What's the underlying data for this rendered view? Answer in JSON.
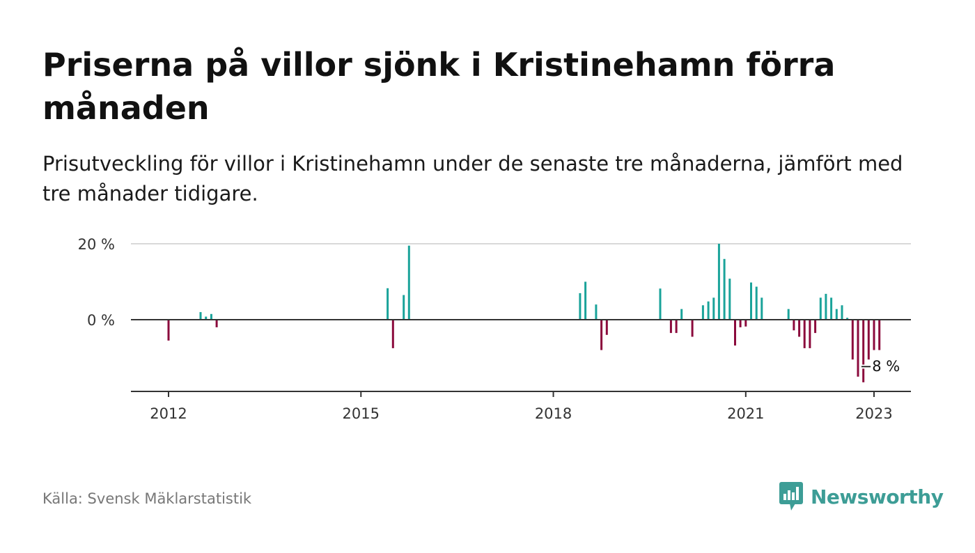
{
  "title": "Priserna på villor sjönk i Kristinehamn förra månaden",
  "subtitle": "Prisutveckling för villor i Kristinehamn under de senaste tre månaderna, jämfört med tre månader tidigare.",
  "source": "Källa: Svensk Mäklarstatistik",
  "brand": "Newsworthy",
  "colors": {
    "positive": "#1aa39a",
    "negative": "#8b0a3c",
    "axis": "#333333",
    "grid": "#d9d9d9",
    "brand": "#3d9d96"
  },
  "chart_data": {
    "type": "bar",
    "y_unit": "%",
    "ylim": [
      -18,
      20
    ],
    "y_ticks": [
      {
        "value": 0,
        "label": "0 %"
      },
      {
        "value": 20,
        "label": "20 %"
      }
    ],
    "x_ticks": [
      "2012",
      "2015",
      "2018",
      "2021",
      "2023"
    ],
    "annotation": "−8 %",
    "x": [
      "2012-01",
      "2012-07",
      "2012-08",
      "2012-09",
      "2012-10",
      "2015-06",
      "2015-07",
      "2015-09",
      "2015-10",
      "2018-06",
      "2018-07",
      "2018-09",
      "2018-10",
      "2018-11",
      "2019-09",
      "2019-11",
      "2019-12",
      "2020-01",
      "2020-03",
      "2020-05",
      "2020-06",
      "2020-07",
      "2020-08",
      "2020-09",
      "2020-10",
      "2020-11",
      "2020-12",
      "2021-01",
      "2021-02",
      "2021-03",
      "2021-04",
      "2021-05",
      "2021-06",
      "2021-09",
      "2021-10",
      "2021-11",
      "2021-12",
      "2022-01",
      "2022-02",
      "2022-03",
      "2022-04",
      "2022-05",
      "2022-06",
      "2022-07",
      "2022-08",
      "2022-09",
      "2022-10",
      "2022-11",
      "2022-12",
      "2023-01",
      "2023-02"
    ],
    "values": [
      -5.5,
      2,
      0.8,
      1.5,
      -2,
      8.3,
      -7.5,
      6.5,
      19.5,
      7,
      10,
      4,
      -8,
      -4,
      8.2,
      -3.5,
      -3.5,
      2.8,
      -4.5,
      3.8,
      4.8,
      5.8,
      20,
      16,
      10.8,
      -6.8,
      -2,
      -1.8,
      9.8,
      8.7,
      5.8,
      0,
      0,
      2.8,
      -2.8,
      -4.5,
      -7.5,
      -7.5,
      -3.5,
      5.8,
      6.8,
      5.8,
      2.8,
      3.8,
      0.5,
      -10.5,
      -15,
      -16.5,
      -10.5,
      -8,
      -8
    ]
  }
}
